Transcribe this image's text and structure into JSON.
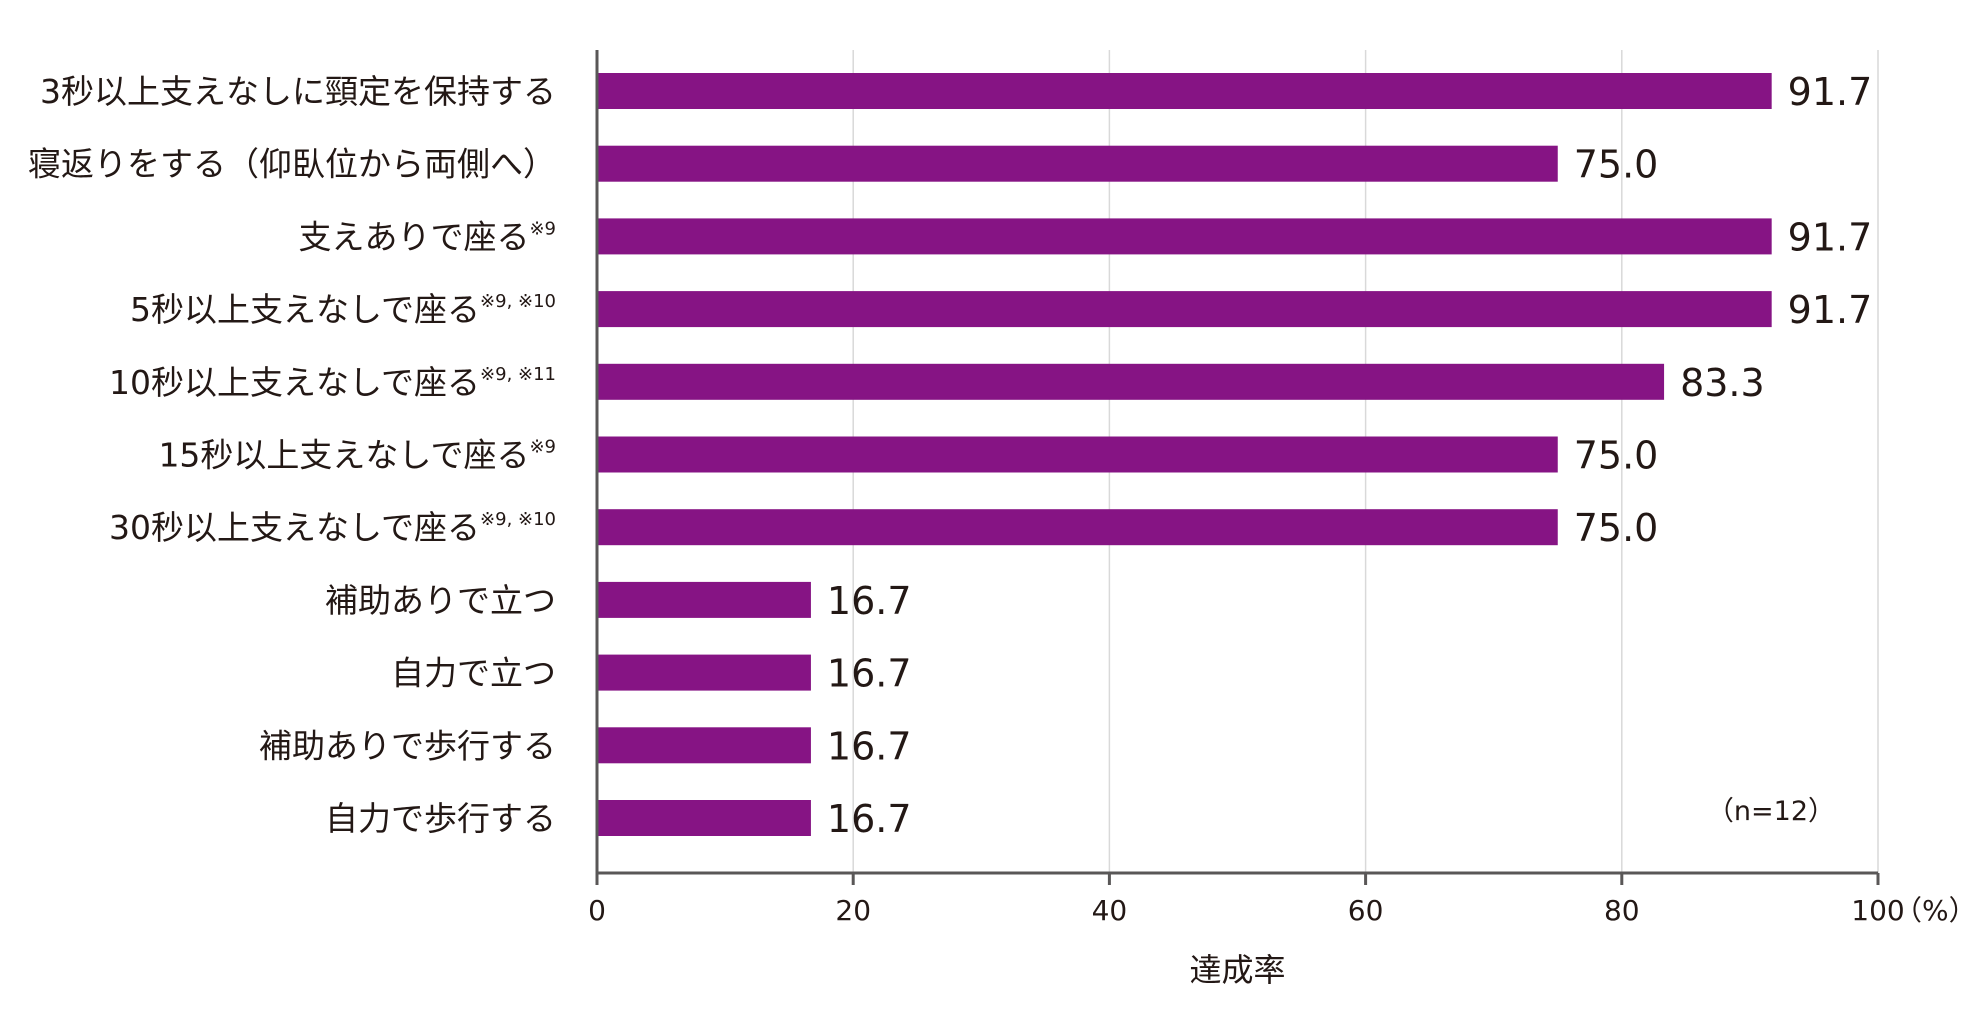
{
  "chart_data": {
    "type": "bar",
    "orientation": "horizontal",
    "categories": [
      "3秒以上支えなしに頸定を保持する",
      "寝返りをする（仰臥位から両側へ）",
      "支えありで座る",
      "5秒以上支えなしで座る",
      "10秒以上支えなしで座る",
      "15秒以上支えなしで座る",
      "30秒以上支えなしで座る",
      "補助ありで立つ",
      "自力で立つ",
      "補助ありで歩行する",
      "自力で歩行する"
    ],
    "category_notes": [
      "",
      "",
      "※9",
      "※9, ※10",
      "※9, ※11",
      "※9",
      "※9, ※10",
      "",
      "",
      "",
      ""
    ],
    "values": [
      91.7,
      75.0,
      91.7,
      91.7,
      83.3,
      75.0,
      75.0,
      16.7,
      16.7,
      16.7,
      16.7
    ],
    "value_labels": [
      "91.7",
      "75.0",
      "91.7",
      "91.7",
      "83.3",
      "75.0",
      "75.0",
      "16.7",
      "16.7",
      "16.7",
      "16.7"
    ],
    "xlabel": "達成率",
    "xunit": "（%）",
    "xlim": [
      0,
      100
    ],
    "xticks": [
      0,
      20,
      40,
      60,
      80,
      100
    ],
    "grid": true,
    "legend": "none",
    "annotation": "（n=12）",
    "colors": {
      "bar": "#861484",
      "grid": "#d9d9d9",
      "axis": "#595757",
      "text": "#231815"
    }
  }
}
